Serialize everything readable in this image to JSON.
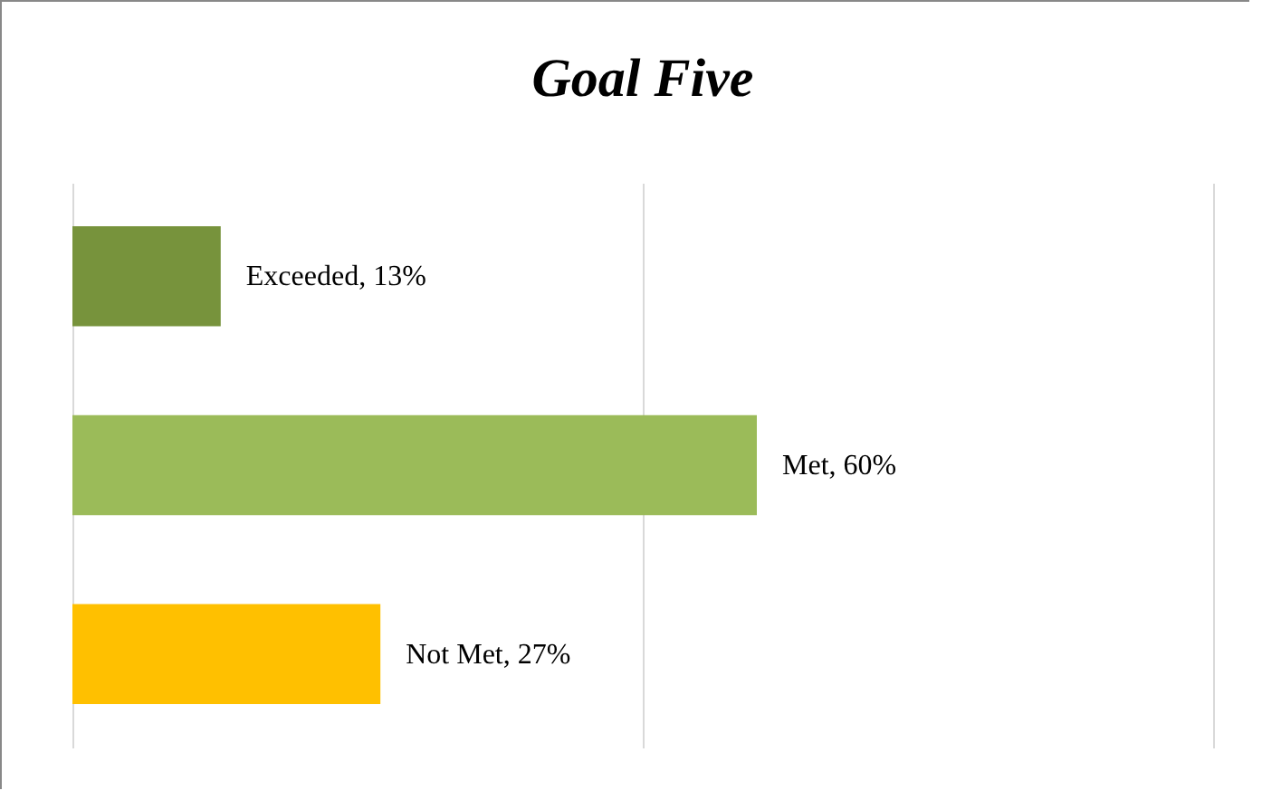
{
  "chart_data": {
    "type": "bar",
    "title": "Goal Five",
    "orientation": "horizontal",
    "categories": [
      null,
      null,
      null
    ],
    "values": [
      13,
      60,
      27
    ],
    "colors": [
      "#77933c",
      "#9bbb59",
      "#ffc000"
    ],
    "value_labels": [
      "Exceeded, 13%",
      "Met, 60%",
      "Not Met, 27%"
    ],
    "xlim": [
      0,
      100
    ],
    "xticks": [
      {
        "value": 0,
        "label": null
      },
      {
        "value": 50,
        "label": null
      },
      {
        "value": 100,
        "label": null
      }
    ],
    "grid": "x"
  }
}
